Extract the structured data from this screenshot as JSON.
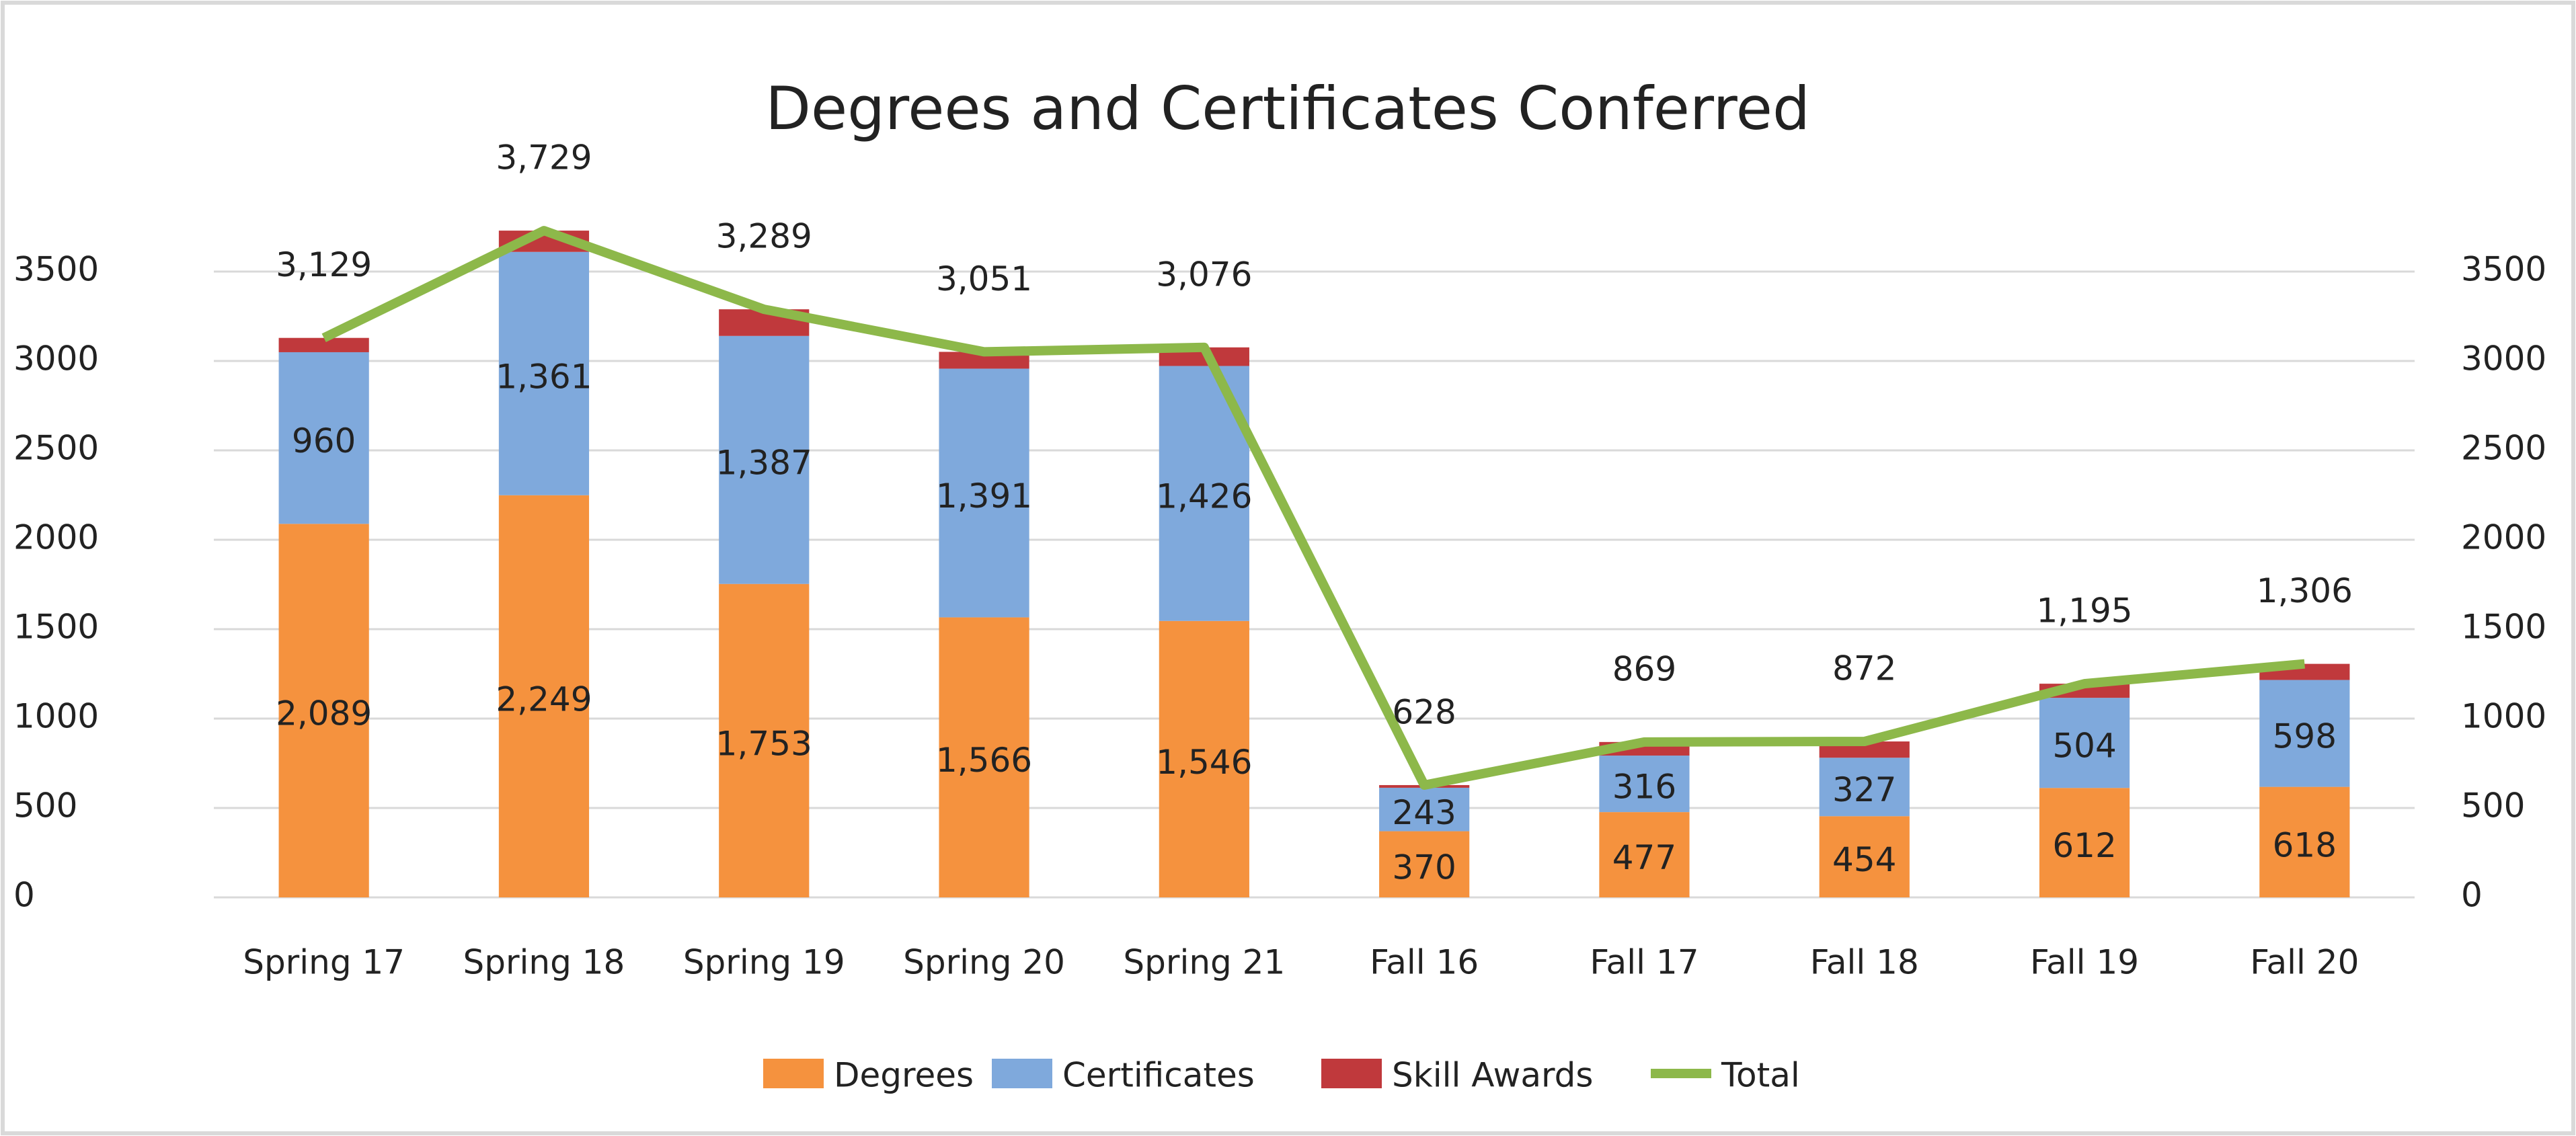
{
  "chart_data": {
    "type": "stacked_bar_line",
    "title": "Degrees and Certificates Conferred",
    "categories": [
      "Spring 17",
      "Spring 18",
      "Spring 19",
      "Spring 20",
      "Spring 21",
      "Fall 16",
      "Fall 17",
      "Fall 18",
      "Fall 19",
      "Fall 20"
    ],
    "series": [
      {
        "name": "Degrees",
        "color": "#f5923e",
        "kind": "bar",
        "values": [
          2089,
          2249,
          1753,
          1566,
          1546,
          370,
          477,
          454,
          612,
          618
        ],
        "value_labels": [
          "2,089",
          "2,249",
          "1,753",
          "1,566",
          "1,546",
          "370",
          "477",
          "454",
          "612",
          "618"
        ]
      },
      {
        "name": "Certificates",
        "color": "#7fa9dc",
        "kind": "bar",
        "values": [
          960,
          1361,
          1387,
          1391,
          1426,
          243,
          316,
          327,
          504,
          598
        ],
        "value_labels": [
          "960",
          "1,361",
          "1,387",
          "1,391",
          "1,426",
          "243",
          "316",
          "327",
          "504",
          "598"
        ]
      },
      {
        "name": "Skill Awards",
        "color": "#c0393c",
        "kind": "bar",
        "values": [
          80,
          119,
          149,
          94,
          104,
          15,
          76,
          91,
          79,
          90
        ]
      },
      {
        "name": "Total",
        "color": "#8db84a",
        "kind": "line",
        "axis": "y2",
        "values": [
          3129,
          3729,
          3289,
          3051,
          3076,
          628,
          869,
          872,
          1195,
          1306
        ],
        "value_labels": [
          "3,129",
          "3,729",
          "3,289",
          "3,051",
          "3,076",
          "628",
          "869",
          "872",
          "1,195",
          "1,306"
        ]
      }
    ],
    "ylim": [
      0,
      3500
    ],
    "yticks": [
      0,
      500,
      1000,
      1500,
      2000,
      2500,
      3000,
      3500
    ],
    "y2lim": [
      0,
      3500
    ],
    "y2ticks": [
      0,
      500,
      1000,
      1500,
      2000,
      2500,
      3000,
      3500
    ],
    "grid": true,
    "legend": "bottom"
  }
}
